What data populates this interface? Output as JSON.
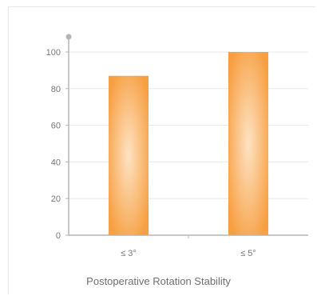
{
  "chart_data": {
    "type": "bar",
    "categories": [
      "≤ 3°",
      "≤ 5°"
    ],
    "values": [
      87,
      100
    ],
    "title": "",
    "xlabel": "Postoperative Rotation Stability",
    "ylabel": "",
    "ylim": [
      0,
      100
    ],
    "yticks": [
      0,
      20,
      40,
      60,
      80,
      100
    ],
    "grid": true,
    "legend": "none",
    "colors": {
      "bar_edge": "#f7a043",
      "bar_center": "#fde3c4",
      "axis": "#b5b5b5",
      "grid": "#e8e8e8"
    }
  }
}
